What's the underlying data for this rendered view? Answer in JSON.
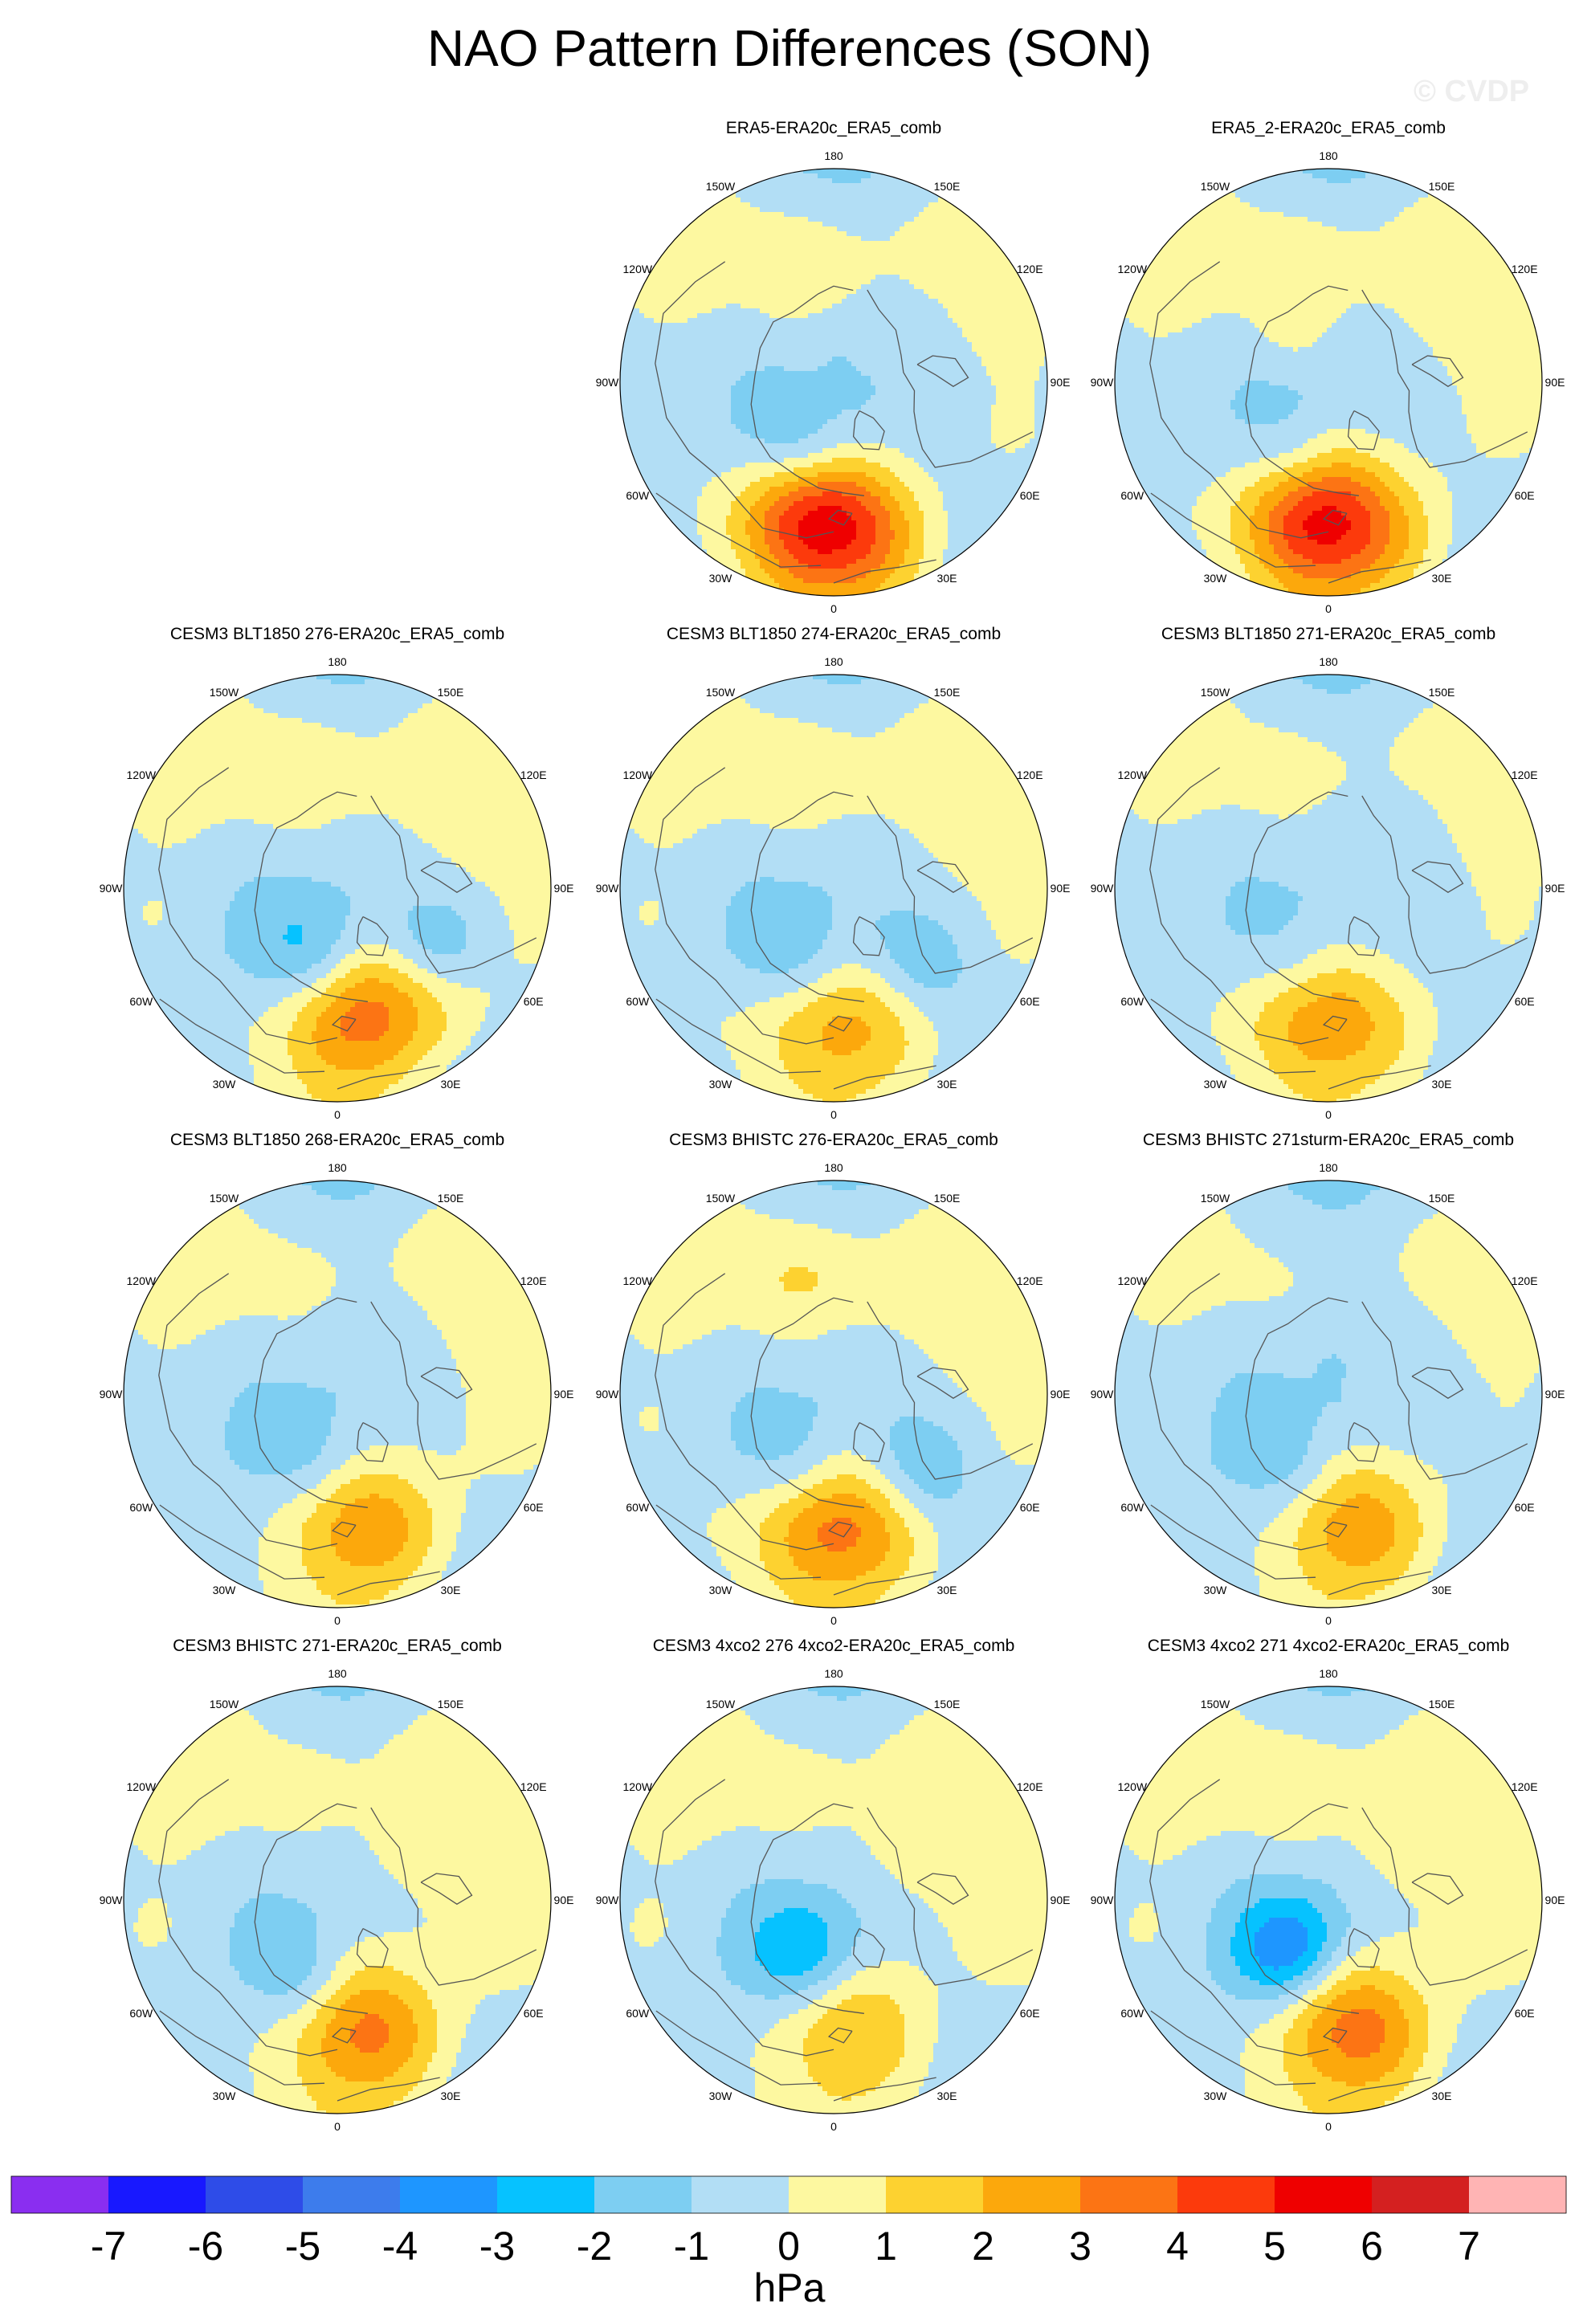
{
  "title": "NAO Pattern Differences (SON)",
  "watermark": "© CVDP",
  "colors": {
    "scale": [
      "#8a2ef0",
      "#1818ff",
      "#2e4ce8",
      "#3d7cec",
      "#1e96ff",
      "#06c2ff",
      "#7dcef2",
      "#b2def5",
      "#fdf8a0",
      "#fdd230",
      "#fca80c",
      "#fc7414",
      "#fc3a0c",
      "#ef0000",
      "#d42020",
      "#ffb4b4"
    ],
    "land_outline": "#555555",
    "axis_circle": "#000000"
  },
  "chart_data": {
    "type": "polar-contour-map",
    "units": "hPa",
    "levels": [
      -7,
      -6,
      -5,
      -4,
      -3,
      -2,
      -1,
      0,
      1,
      2,
      3,
      4,
      5,
      6,
      7
    ],
    "longitude_labels": [
      "180",
      "150E",
      "120E",
      "90E",
      "60E",
      "30E",
      "0",
      "30W",
      "60W",
      "90W",
      "120W",
      "150W"
    ],
    "panels": [
      {
        "title": "ERA5-ERA20c_ERA5_comb",
        "neg_bg": 0.5,
        "max": 6.0,
        "min": -2.5,
        "features": [
          [
            8,
            0.62,
            1,
            0.25
          ],
          [
            340,
            0.8,
            1.6,
            0.2
          ],
          [
            25,
            0.05,
            -0.6,
            0.28
          ],
          [
            20,
            0.38,
            -2.5,
            0.18
          ],
          [
            170,
            0.55,
            1.6,
            0.22
          ],
          [
            120,
            0.85,
            0.7,
            0.22
          ],
          [
            250,
            0.85,
            0.6,
            0.25
          ],
          [
            295,
            0.85,
            0.6,
            0.22
          ],
          [
            45,
            0.9,
            0.5,
            0.18
          ],
          [
            80,
            0.85,
            0.5,
            0.18
          ],
          [
            210,
            0.8,
            0.5,
            0.2
          ],
          [
            120,
            0.55,
            -0.4,
            0.2
          ],
          [
            65,
            0.45,
            -0.4,
            0.2
          ],
          [
            240,
            0.35,
            -0.3,
            0.25
          ]
        ]
      },
      {
        "title": "ERA5_2-ERA20c_ERA5_comb",
        "neg_bg": 0.5,
        "max": 5.5,
        "min": -1.6,
        "features": [
          [
            5,
            0.62,
            1,
            0.25
          ],
          [
            335,
            0.8,
            1.6,
            0.2
          ],
          [
            30,
            0.05,
            -0.6,
            0.28
          ],
          [
            20,
            0.4,
            -1.6,
            0.16
          ],
          [
            170,
            0.55,
            1.6,
            0.22
          ],
          [
            120,
            0.85,
            0.8,
            0.25
          ],
          [
            250,
            0.85,
            0.8,
            0.28
          ],
          [
            295,
            0.85,
            0.6,
            0.22
          ],
          [
            45,
            0.9,
            0.6,
            0.18
          ],
          [
            80,
            0.85,
            0.6,
            0.18
          ],
          [
            210,
            0.8,
            0.6,
            0.2
          ],
          [
            150,
            0.3,
            0.8,
            0.12
          ],
          [
            120,
            0.55,
            -0.4,
            0.2
          ],
          [
            65,
            0.45,
            -0.4,
            0.2
          ]
        ]
      },
      {
        "title": "CESM3 BLT1850 276-ERA20c_ERA5_comb",
        "neg_bg": 0.45,
        "max": 4.0,
        "min": -2.5,
        "features": [
          [
            350,
            0.55,
            1,
            0.25
          ],
          [
            320,
            0.75,
            1.2,
            0.2
          ],
          [
            30,
            0.1,
            -0.6,
            0.3
          ],
          [
            15,
            0.35,
            -2.5,
            0.18
          ],
          [
            300,
            0.55,
            -1.8,
            0.18
          ],
          [
            170,
            0.55,
            1.6,
            0.22
          ],
          [
            120,
            0.85,
            0.8,
            0.25
          ],
          [
            250,
            0.85,
            0.8,
            0.28
          ],
          [
            295,
            0.85,
            0.6,
            0.22
          ],
          [
            45,
            0.9,
            0.6,
            0.18
          ],
          [
            80,
            0.85,
            0.6,
            0.18
          ],
          [
            210,
            0.8,
            0.6,
            0.2
          ],
          [
            120,
            0.55,
            -0.4,
            0.2
          ],
          [
            65,
            0.45,
            -0.4,
            0.2
          ]
        ]
      },
      {
        "title": "CESM3 BLT1850 274-ERA20c_ERA5_comb",
        "neg_bg": 0.45,
        "max": 2.6,
        "min": -2.0,
        "features": [
          [
            5,
            0.55,
            1,
            0.25
          ],
          [
            335,
            0.75,
            1.2,
            0.2
          ],
          [
            30,
            0.1,
            -0.6,
            0.3
          ],
          [
            20,
            0.4,
            -2.0,
            0.18
          ],
          [
            310,
            0.55,
            -1.4,
            0.18
          ],
          [
            170,
            0.55,
            1.6,
            0.22
          ],
          [
            120,
            0.85,
            0.8,
            0.25
          ],
          [
            250,
            0.85,
            0.8,
            0.28
          ],
          [
            295,
            0.85,
            0.6,
            0.22
          ],
          [
            45,
            0.9,
            0.6,
            0.18
          ],
          [
            80,
            0.85,
            0.6,
            0.18
          ],
          [
            210,
            0.8,
            0.6,
            0.2
          ],
          [
            120,
            0.55,
            -0.4,
            0.2
          ],
          [
            65,
            0.45,
            -0.4,
            0.2
          ]
        ]
      },
      {
        "title": "CESM3 BLT1850 271-ERA20c_ERA5_comb",
        "neg_bg": 0.5,
        "max": 3.0,
        "min": -1.3,
        "features": [
          [
            8,
            0.55,
            1,
            0.25
          ],
          [
            335,
            0.75,
            1.2,
            0.2
          ],
          [
            30,
            0.1,
            -0.6,
            0.3
          ],
          [
            20,
            0.4,
            -1.3,
            0.16
          ],
          [
            170,
            0.55,
            1.2,
            0.22
          ],
          [
            120,
            0.85,
            0.6,
            0.25
          ],
          [
            250,
            0.85,
            0.6,
            0.28
          ],
          [
            295,
            0.85,
            0.5,
            0.22
          ],
          [
            45,
            0.9,
            0.5,
            0.18
          ],
          [
            80,
            0.85,
            0.5,
            0.18
          ],
          [
            210,
            0.8,
            0.5,
            0.2
          ],
          [
            120,
            0.55,
            -0.4,
            0.2
          ],
          [
            65,
            0.45,
            -0.4,
            0.2
          ],
          [
            230,
            0.45,
            -0.3,
            0.2
          ]
        ]
      },
      {
        "title": "CESM3 BLT1850 268-ERA20c_ERA5_comb",
        "neg_bg": 0.48,
        "max": 2.5,
        "min": -1.3,
        "features": [
          [
            350,
            0.55,
            1,
            0.25
          ],
          [
            335,
            0.75,
            1.2,
            0.2
          ],
          [
            30,
            0.1,
            -0.6,
            0.3
          ],
          [
            15,
            0.35,
            -1.3,
            0.16
          ],
          [
            170,
            0.55,
            1.0,
            0.22
          ],
          [
            120,
            0.85,
            0.8,
            0.25
          ],
          [
            250,
            0.85,
            0.8,
            0.28
          ],
          [
            295,
            0.85,
            0.6,
            0.22
          ],
          [
            45,
            0.9,
            0.6,
            0.18
          ],
          [
            80,
            0.85,
            0.6,
            0.18
          ],
          [
            210,
            0.8,
            0.6,
            0.2
          ],
          [
            120,
            0.55,
            -0.4,
            0.2
          ],
          [
            65,
            0.45,
            -0.4,
            0.2
          ],
          [
            230,
            0.4,
            -0.3,
            0.22
          ]
        ]
      },
      {
        "title": "CESM3 BHISTC 276-ERA20c_ERA5_comb",
        "neg_bg": 0.45,
        "max": 3.8,
        "min": -2.0,
        "features": [
          [
            5,
            0.55,
            1,
            0.25
          ],
          [
            335,
            0.75,
            1.2,
            0.2
          ],
          [
            30,
            0.1,
            -0.6,
            0.3
          ],
          [
            20,
            0.4,
            -2.0,
            0.18
          ],
          [
            310,
            0.55,
            -1.6,
            0.18
          ],
          [
            170,
            0.55,
            1.8,
            0.22
          ],
          [
            120,
            0.85,
            0.8,
            0.25
          ],
          [
            250,
            0.85,
            0.8,
            0.28
          ],
          [
            295,
            0.85,
            0.6,
            0.22
          ],
          [
            45,
            0.9,
            0.6,
            0.18
          ],
          [
            80,
            0.85,
            0.6,
            0.18
          ],
          [
            210,
            0.8,
            0.6,
            0.2
          ],
          [
            120,
            0.55,
            -0.4,
            0.2
          ],
          [
            65,
            0.45,
            -0.4,
            0.2
          ]
        ]
      },
      {
        "title": "CESM3 BHISTC 271sturm-ERA20c_ERA5_comb",
        "neg_bg": 0.55,
        "max": 2.5,
        "min": -1.2,
        "features": [
          [
            350,
            0.55,
            1,
            0.25
          ],
          [
            335,
            0.75,
            1.2,
            0.2
          ],
          [
            30,
            0.1,
            -0.6,
            0.3
          ],
          [
            20,
            0.4,
            -1.2,
            0.16
          ],
          [
            170,
            0.55,
            0.8,
            0.22
          ],
          [
            120,
            0.85,
            0.6,
            0.25
          ],
          [
            250,
            0.85,
            0.6,
            0.28
          ],
          [
            295,
            0.85,
            0.5,
            0.22
          ],
          [
            45,
            0.9,
            0.5,
            0.18
          ],
          [
            80,
            0.85,
            0.5,
            0.18
          ],
          [
            210,
            0.8,
            0.5,
            0.2
          ],
          [
            120,
            0.55,
            -0.4,
            0.2
          ],
          [
            65,
            0.45,
            -0.4,
            0.2
          ],
          [
            240,
            0.35,
            -0.3,
            0.25
          ]
        ]
      },
      {
        "title": "CESM3 BHISTC 271-ERA20c_ERA5_comb",
        "neg_bg": 0.4,
        "max": 3.0,
        "min": -1.8,
        "features": [
          [
            350,
            0.55,
            1,
            0.25
          ],
          [
            335,
            0.75,
            1.2,
            0.2
          ],
          [
            30,
            0.1,
            -0.6,
            0.3
          ],
          [
            20,
            0.4,
            -1.8,
            0.16
          ],
          [
            170,
            0.55,
            1.0,
            0.22
          ],
          [
            120,
            0.85,
            0.8,
            0.25
          ],
          [
            250,
            0.85,
            0.8,
            0.28
          ],
          [
            295,
            0.85,
            0.6,
            0.22
          ],
          [
            45,
            0.9,
            0.6,
            0.18
          ],
          [
            80,
            0.85,
            0.6,
            0.18
          ],
          [
            210,
            0.8,
            0.6,
            0.2
          ],
          [
            120,
            0.55,
            -0.4,
            0.2
          ],
          [
            65,
            0.45,
            -0.4,
            0.2
          ],
          [
            230,
            0.4,
            0.4,
            0.25
          ]
        ]
      },
      {
        "title": "CESM3 4xco2 276 4xco2-ERA20c_ERA5_comb",
        "neg_bg": 0.4,
        "max": 1.8,
        "min": -2.6,
        "features": [
          [
            355,
            0.5,
            1,
            0.25
          ],
          [
            340,
            0.7,
            1.0,
            0.2
          ],
          [
            30,
            0.1,
            -0.6,
            0.3
          ],
          [
            25,
            0.3,
            -2.6,
            0.18
          ],
          [
            170,
            0.55,
            1.0,
            0.22
          ],
          [
            120,
            0.85,
            0.8,
            0.25
          ],
          [
            250,
            0.85,
            0.8,
            0.28
          ],
          [
            295,
            0.85,
            0.6,
            0.22
          ],
          [
            45,
            0.9,
            0.6,
            0.18
          ],
          [
            80,
            0.85,
            0.6,
            0.18
          ],
          [
            210,
            0.8,
            0.6,
            0.2
          ],
          [
            120,
            0.55,
            -0.4,
            0.2
          ],
          [
            65,
            0.45,
            -0.4,
            0.2
          ],
          [
            230,
            0.4,
            0.4,
            0.25
          ]
        ]
      },
      {
        "title": "CESM3 4xco2 271 4xco2-ERA20c_ERA5_comb",
        "neg_bg": 0.42,
        "max": 3.2,
        "min": -3.3,
        "features": [
          [
            350,
            0.55,
            1,
            0.25
          ],
          [
            335,
            0.75,
            1.2,
            0.2
          ],
          [
            30,
            0.1,
            -0.6,
            0.3
          ],
          [
            35,
            0.3,
            -3.3,
            0.18
          ],
          [
            170,
            0.55,
            1.4,
            0.22
          ],
          [
            120,
            0.85,
            0.8,
            0.25
          ],
          [
            250,
            0.85,
            0.8,
            0.28
          ],
          [
            295,
            0.85,
            0.6,
            0.22
          ],
          [
            45,
            0.9,
            0.6,
            0.18
          ],
          [
            80,
            0.85,
            0.6,
            0.18
          ],
          [
            210,
            0.8,
            0.6,
            0.2
          ],
          [
            120,
            0.55,
            -0.4,
            0.2
          ],
          [
            65,
            0.45,
            -0.4,
            0.2
          ],
          [
            230,
            0.4,
            0.4,
            0.25
          ]
        ]
      }
    ]
  }
}
